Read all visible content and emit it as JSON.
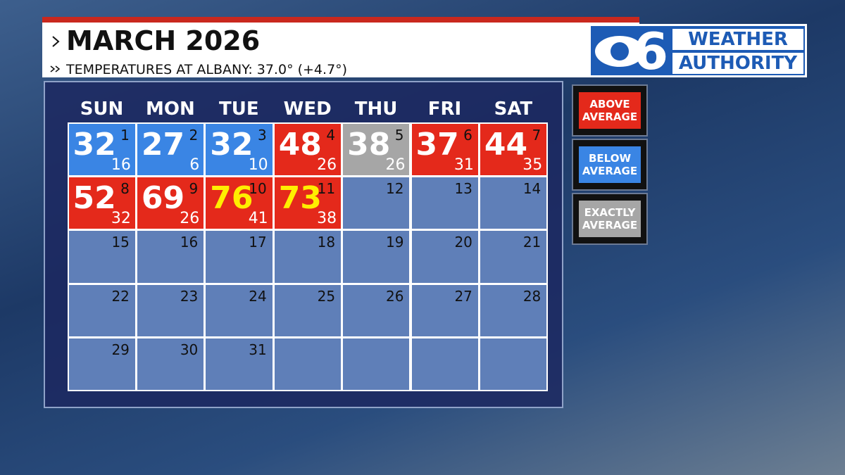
{
  "header": {
    "title": "MARCH 2026",
    "subtitle": "TEMPERATURES AT ALBANY: 37.0° (+4.7°)"
  },
  "logo": {
    "number": "6",
    "line1": "WEATHER",
    "line2": "AUTHORITY"
  },
  "weekdays": [
    "SUN",
    "MON",
    "TUE",
    "WED",
    "THU",
    "FRI",
    "SAT"
  ],
  "days": [
    {
      "date": 1,
      "high": 32,
      "low": 16,
      "color": "#3a85e4"
    },
    {
      "date": 2,
      "high": 27,
      "low": 6,
      "color": "#3a85e4"
    },
    {
      "date": 3,
      "high": 32,
      "low": 10,
      "color": "#3a85e4"
    },
    {
      "date": 4,
      "high": 48,
      "low": 26,
      "color": "#e4291b"
    },
    {
      "date": 5,
      "high": 38,
      "low": 26,
      "color": "#a6a6a6"
    },
    {
      "date": 6,
      "high": 37,
      "low": 31,
      "color": "#e4291b"
    },
    {
      "date": 7,
      "high": 44,
      "low": 35,
      "color": "#e4291b"
    },
    {
      "date": 8,
      "high": 52,
      "low": 32,
      "color": "#e4291b"
    },
    {
      "date": 9,
      "high": 69,
      "low": 26,
      "color": "#e4291b"
    },
    {
      "date": 10,
      "high": 76,
      "low": 41,
      "color": "#e4291b",
      "high_color": "#ffee00"
    },
    {
      "date": 11,
      "high": 73,
      "low": 38,
      "color": "#e4291b",
      "high_color": "#ffee00"
    },
    {
      "date": 12
    },
    {
      "date": 13
    },
    {
      "date": 14
    },
    {
      "date": 15
    },
    {
      "date": 16
    },
    {
      "date": 17
    },
    {
      "date": 18
    },
    {
      "date": 19
    },
    {
      "date": 20
    },
    {
      "date": 21
    },
    {
      "date": 22
    },
    {
      "date": 23
    },
    {
      "date": 24
    },
    {
      "date": 25
    },
    {
      "date": 26
    },
    {
      "date": 27
    },
    {
      "date": 28
    },
    {
      "date": 29
    },
    {
      "date": 30
    },
    {
      "date": 31
    }
  ],
  "legend": [
    {
      "label": "ABOVE AVERAGE",
      "color": "#e4291b"
    },
    {
      "label": "BELOW AVERAGE",
      "color": "#3a85e4"
    },
    {
      "label": "EXACTLY AVERAGE",
      "color": "#a6a6a6"
    }
  ]
}
